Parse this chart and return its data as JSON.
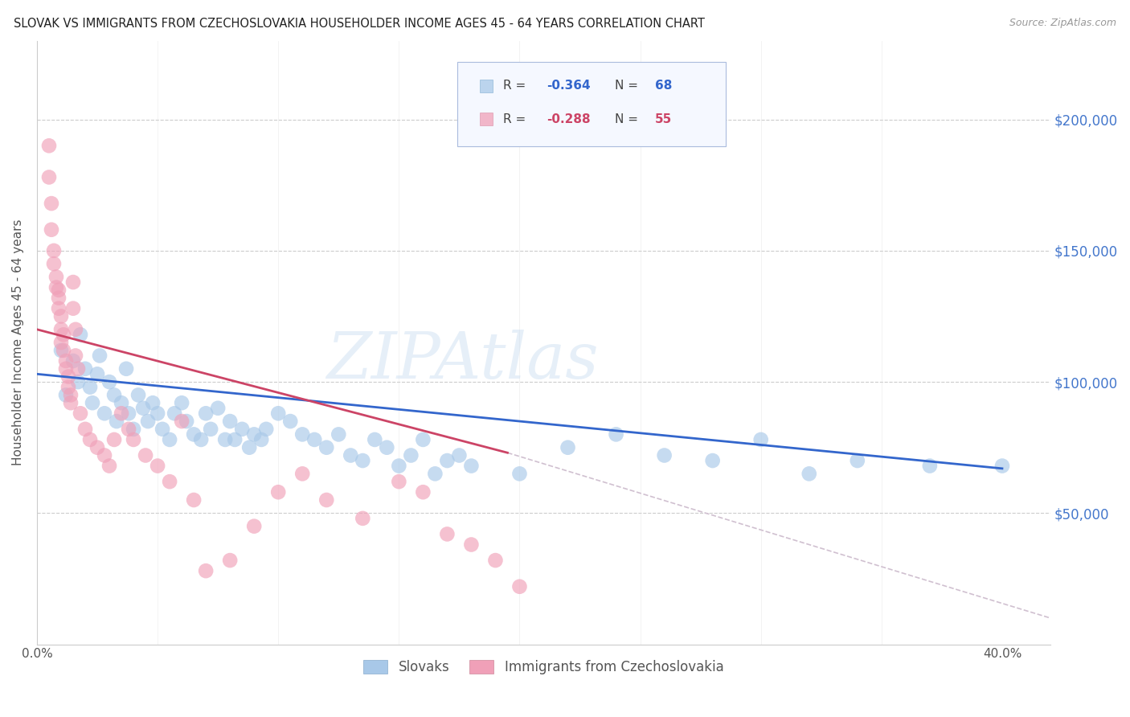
{
  "title": "SLOVAK VS IMMIGRANTS FROM CZECHOSLOVAKIA HOUSEHOLDER INCOME AGES 45 - 64 YEARS CORRELATION CHART",
  "source": "Source: ZipAtlas.com",
  "ylabel": "Householder Income Ages 45 - 64 years",
  "xlim": [
    0.0,
    0.42
  ],
  "ylim": [
    0,
    230000
  ],
  "ytick_labels_right": [
    "$50,000",
    "$100,000",
    "$150,000",
    "$200,000"
  ],
  "ytick_positions_right": [
    50000,
    100000,
    150000,
    200000
  ],
  "blue_color": "#A8C8E8",
  "pink_color": "#F0A0B8",
  "blue_line_color": "#3366CC",
  "pink_line_color": "#CC4466",
  "dashed_line_color": "#D0C0D0",
  "label_slovaks": "Slovaks",
  "label_immigrants": "Immigrants from Czechoslovakia",
  "watermark": "ZIPAtlas",
  "blue_line_x0": 0.0,
  "blue_line_y0": 103000,
  "blue_line_x1": 0.4,
  "blue_line_y1": 67000,
  "pink_line_x0": 0.0,
  "pink_line_y0": 120000,
  "pink_line_x1": 0.195,
  "pink_line_y1": 73000,
  "dashed_line_x0": 0.195,
  "dashed_line_y0": 73000,
  "dashed_line_x1": 0.42,
  "dashed_line_y1": 10000,
  "blue_scatter_x": [
    0.01,
    0.012,
    0.015,
    0.017,
    0.018,
    0.02,
    0.022,
    0.023,
    0.025,
    0.026,
    0.028,
    0.03,
    0.032,
    0.033,
    0.035,
    0.037,
    0.038,
    0.04,
    0.042,
    0.044,
    0.046,
    0.048,
    0.05,
    0.052,
    0.055,
    0.057,
    0.06,
    0.062,
    0.065,
    0.068,
    0.07,
    0.072,
    0.075,
    0.078,
    0.08,
    0.082,
    0.085,
    0.088,
    0.09,
    0.093,
    0.095,
    0.1,
    0.105,
    0.11,
    0.115,
    0.12,
    0.125,
    0.13,
    0.135,
    0.14,
    0.145,
    0.15,
    0.155,
    0.16,
    0.165,
    0.17,
    0.175,
    0.18,
    0.2,
    0.22,
    0.24,
    0.26,
    0.28,
    0.3,
    0.32,
    0.34,
    0.37,
    0.4
  ],
  "blue_scatter_y": [
    112000,
    95000,
    108000,
    100000,
    118000,
    105000,
    98000,
    92000,
    103000,
    110000,
    88000,
    100000,
    95000,
    85000,
    92000,
    105000,
    88000,
    82000,
    95000,
    90000,
    85000,
    92000,
    88000,
    82000,
    78000,
    88000,
    92000,
    85000,
    80000,
    78000,
    88000,
    82000,
    90000,
    78000,
    85000,
    78000,
    82000,
    75000,
    80000,
    78000,
    82000,
    88000,
    85000,
    80000,
    78000,
    75000,
    80000,
    72000,
    70000,
    78000,
    75000,
    68000,
    72000,
    78000,
    65000,
    70000,
    72000,
    68000,
    65000,
    75000,
    80000,
    72000,
    70000,
    78000,
    65000,
    70000,
    68000,
    68000
  ],
  "pink_scatter_x": [
    0.005,
    0.005,
    0.006,
    0.006,
    0.007,
    0.007,
    0.008,
    0.008,
    0.009,
    0.009,
    0.009,
    0.01,
    0.01,
    0.01,
    0.011,
    0.011,
    0.012,
    0.012,
    0.013,
    0.013,
    0.014,
    0.014,
    0.015,
    0.015,
    0.016,
    0.016,
    0.017,
    0.018,
    0.02,
    0.022,
    0.025,
    0.028,
    0.03,
    0.032,
    0.035,
    0.038,
    0.04,
    0.045,
    0.05,
    0.055,
    0.06,
    0.065,
    0.07,
    0.08,
    0.09,
    0.1,
    0.11,
    0.12,
    0.135,
    0.15,
    0.16,
    0.17,
    0.18,
    0.19,
    0.2
  ],
  "pink_scatter_y": [
    190000,
    178000,
    168000,
    158000,
    150000,
    145000,
    140000,
    136000,
    132000,
    128000,
    135000,
    125000,
    120000,
    115000,
    118000,
    112000,
    108000,
    105000,
    102000,
    98000,
    95000,
    92000,
    138000,
    128000,
    120000,
    110000,
    105000,
    88000,
    82000,
    78000,
    75000,
    72000,
    68000,
    78000,
    88000,
    82000,
    78000,
    72000,
    68000,
    62000,
    85000,
    55000,
    28000,
    32000,
    45000,
    58000,
    65000,
    55000,
    48000,
    62000,
    58000,
    42000,
    38000,
    32000,
    22000
  ]
}
